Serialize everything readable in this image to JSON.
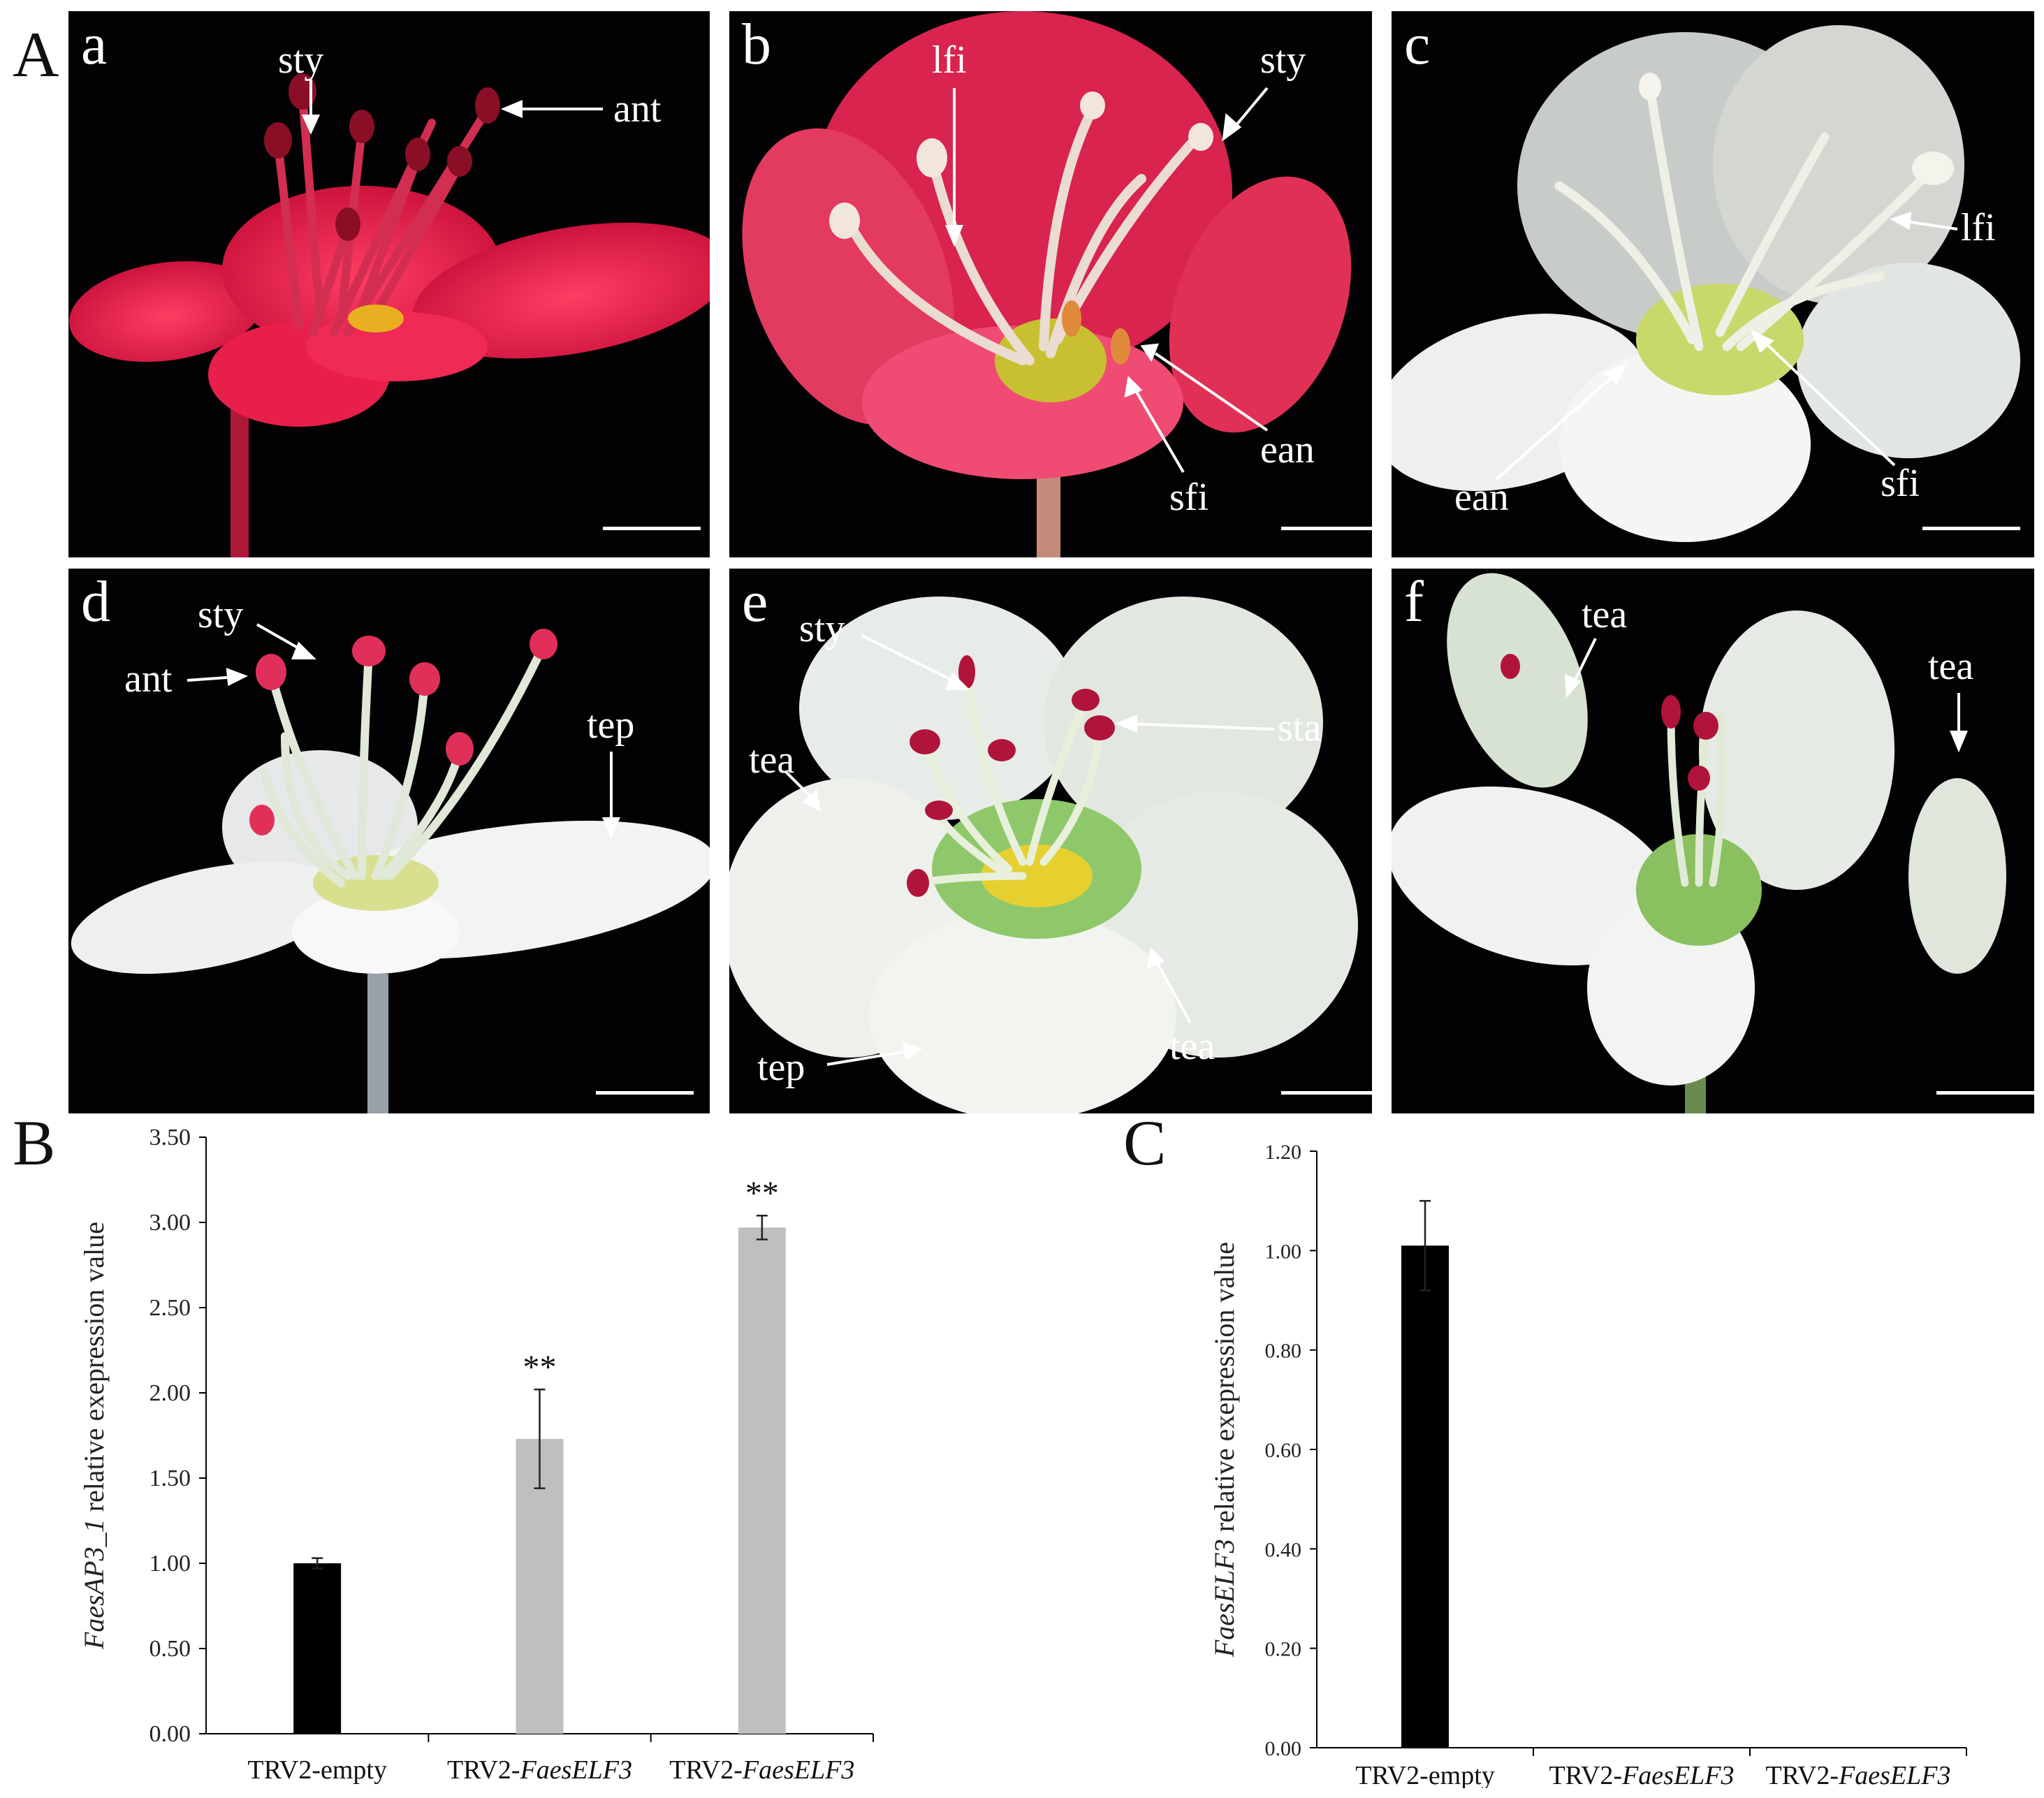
{
  "figure": {
    "panel_labels": {
      "A": "A",
      "B": "B",
      "C": "C"
    },
    "photos": [
      {
        "id": "a",
        "letter": "a",
        "petal_color": "#e8204a",
        "annotations": [
          "sty",
          "ant"
        ]
      },
      {
        "id": "b",
        "letter": "b",
        "petal_color": "#e03a5c",
        "annotations": [
          "lfi",
          "sty",
          "ean",
          "sfi"
        ]
      },
      {
        "id": "c",
        "letter": "c",
        "petal_color": "#e6ece6",
        "annotations": [
          "lfi",
          "ean",
          "sfi"
        ]
      },
      {
        "id": "d",
        "letter": "d",
        "petal_color": "#eef0f0",
        "annotations": [
          "sty",
          "ant",
          "tep"
        ]
      },
      {
        "id": "e",
        "letter": "e",
        "petal_color": "#eef0ea",
        "annotations": [
          "sty",
          "sta",
          "tea",
          "tea",
          "tep"
        ]
      },
      {
        "id": "f",
        "letter": "f",
        "petal_color": "#eef0ee",
        "annotations": [
          "tea",
          "tea"
        ]
      }
    ]
  },
  "chart_data": [
    {
      "type": "bar",
      "panel": "B",
      "categories": [
        "TRV2-empty",
        "TRV2-FaesELF3",
        "TRV2-FaesELF3"
      ],
      "category_parts": [
        [
          "TRV2-empty",
          ""
        ],
        [
          "TRV2-",
          "FaesELF3"
        ],
        [
          "TRV2-",
          "FaesELF3"
        ]
      ],
      "values": [
        1.0,
        1.73,
        2.97
      ],
      "errors": [
        0.03,
        0.29,
        0.07
      ],
      "significance": [
        "",
        "**",
        "**"
      ],
      "bar_colors": [
        "#000000",
        "#bfbfbf",
        "#bfbfbf"
      ],
      "ylabel_italic": "FaesAP3_1",
      "ylabel_rest": " relative exepression value",
      "ylim": [
        0,
        3.5
      ],
      "yticks": [
        "0.00",
        "0.50",
        "1.00",
        "1.50",
        "2.00",
        "2.50",
        "3.00",
        "3.50"
      ],
      "grid": false
    },
    {
      "type": "bar",
      "panel": "C",
      "categories": [
        "TRV2-empty",
        "TRV2-FaesELF3",
        "TRV2-FaesELF3"
      ],
      "category_parts": [
        [
          "TRV2-empty",
          ""
        ],
        [
          "TRV2-",
          "FaesELF3"
        ],
        [
          "TRV2-",
          "FaesELF3"
        ]
      ],
      "values": [
        1.01,
        0.0,
        0.0
      ],
      "errors": [
        0.09,
        0.0,
        0.0
      ],
      "significance": [
        "",
        "",
        ""
      ],
      "bar_colors": [
        "#000000",
        "#000000",
        "#000000"
      ],
      "ylabel_italic": "FaesELF3",
      "ylabel_rest": " relative exepression value",
      "ylim": [
        0,
        1.2
      ],
      "yticks": [
        "0.00",
        "0.20",
        "0.40",
        "0.60",
        "0.80",
        "1.00",
        "1.20"
      ],
      "grid": false
    }
  ]
}
